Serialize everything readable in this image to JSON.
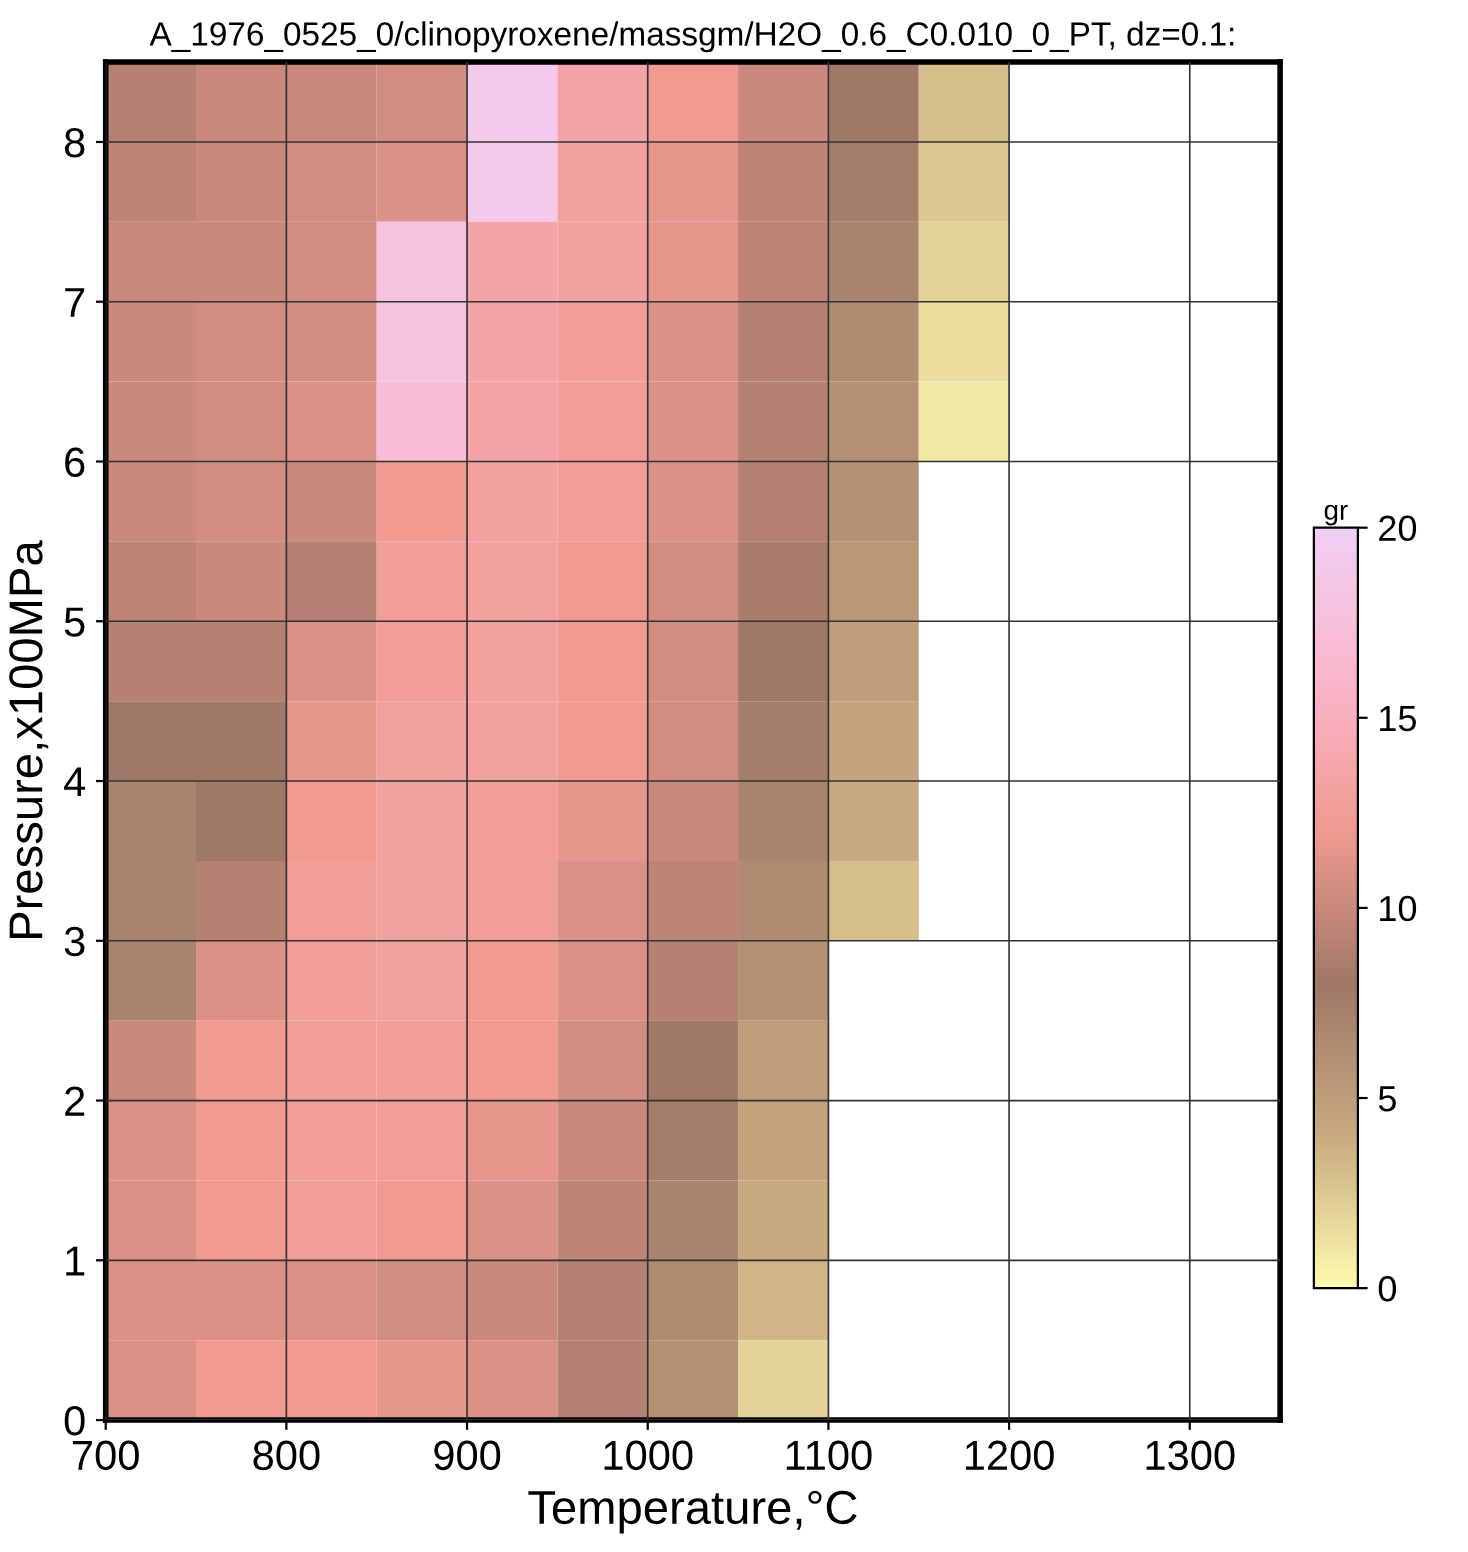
{
  "chart_data": {
    "type": "heatmap",
    "title": "A_1976_0525_0/clinopyroxene/massgm/H2O_0.6_C0.010_0_PT, dz=0.1:",
    "xlabel": "Temperature,°C",
    "ylabel": "Pressure,x100MPa",
    "clabel": "gr",
    "x": [
      725,
      775,
      825,
      875,
      925,
      975,
      1025,
      1075,
      1125,
      1175,
      1225,
      1275,
      1325
    ],
    "y": [
      8.25,
      7.75,
      7.25,
      6.75,
      6.25,
      5.75,
      5.25,
      4.75,
      4.25,
      3.75,
      3.25,
      2.75,
      2.25,
      1.75,
      1.25,
      0.75,
      0.25
    ],
    "cells": [
      [
        9,
        10,
        10,
        10.5,
        19,
        13.5,
        12,
        10,
        8,
        3,
        null,
        null,
        null
      ],
      [
        9.5,
        10,
        10.5,
        11,
        19,
        13,
        11.5,
        9.5,
        7.5,
        2.5,
        null,
        null,
        null
      ],
      [
        10,
        10,
        10.5,
        18,
        13.5,
        13,
        11.5,
        9.5,
        7,
        2,
        null,
        null,
        null
      ],
      [
        10,
        10.5,
        10.5,
        18,
        13.5,
        12.5,
        11,
        9,
        6.5,
        1.5,
        null,
        null,
        null
      ],
      [
        10,
        10.5,
        11,
        17,
        13.5,
        12.5,
        11,
        9,
        6,
        1,
        null,
        null,
        null
      ],
      [
        10,
        10.5,
        10,
        12,
        13,
        12.5,
        11,
        9,
        6,
        null,
        null,
        null,
        null
      ],
      [
        9.5,
        10,
        9,
        12.5,
        13,
        12,
        10.5,
        8.5,
        5.5,
        null,
        null,
        null,
        null
      ],
      [
        9,
        9,
        11,
        12.5,
        13,
        12,
        10.5,
        8,
        5,
        null,
        null,
        null,
        null
      ],
      [
        8,
        8,
        11.5,
        13,
        13,
        12,
        10.5,
        7.5,
        4.5,
        null,
        null,
        null,
        null
      ],
      [
        7,
        8,
        12,
        13,
        12.5,
        11.5,
        10,
        7,
        4,
        null,
        null,
        null,
        null
      ],
      [
        7,
        9,
        12.5,
        13,
        12.5,
        11,
        9.5,
        6.5,
        3,
        null,
        null,
        null,
        null
      ],
      [
        7,
        11,
        12.5,
        13,
        12,
        11,
        9,
        6,
        null,
        null,
        null,
        null,
        null
      ],
      [
        10,
        12,
        12.5,
        12.5,
        12,
        10.5,
        8,
        5,
        null,
        null,
        null,
        null,
        null
      ],
      [
        11,
        12,
        12.5,
        12.5,
        11.5,
        10,
        7.5,
        4.5,
        null,
        null,
        null,
        null,
        null
      ],
      [
        11,
        12,
        12.5,
        12,
        11,
        9.5,
        7,
        4,
        null,
        null,
        null,
        null,
        null
      ],
      [
        11,
        11,
        11,
        10.5,
        10,
        9,
        6.5,
        3.5,
        null,
        null,
        null,
        null,
        null
      ],
      [
        11,
        12,
        12,
        11.5,
        11,
        9,
        6,
        2,
        null,
        null,
        null,
        null,
        null
      ]
    ],
    "xlim": [
      700,
      1350
    ],
    "ylim": [
      0,
      8.5
    ],
    "xticks": [
      700,
      800,
      900,
      1000,
      1100,
      1200,
      1300
    ],
    "yticks": [
      0,
      1,
      2,
      3,
      4,
      5,
      6,
      7,
      8
    ],
    "clim": [
      0,
      20
    ],
    "cticks": [
      0,
      5,
      10,
      15,
      20
    ],
    "colors": [
      "#fffbb0",
      "#c8aa80",
      "#a07868",
      "#f09a90",
      "#fbb6cc",
      "#f0d0f4"
    ],
    "grid": true
  }
}
